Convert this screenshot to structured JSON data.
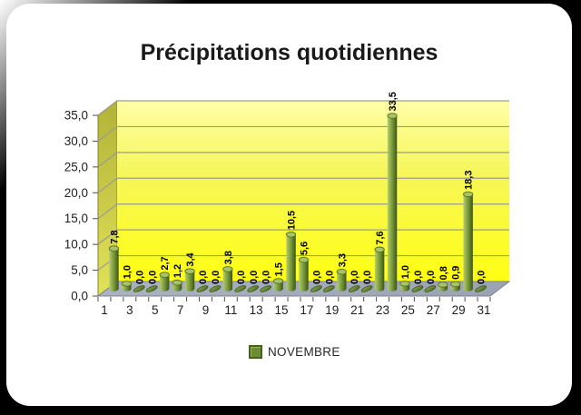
{
  "frame": {
    "background": "#000000",
    "card_background": "#ffffff"
  },
  "title": {
    "text": "Précipitations quotidiennes",
    "color": "#1a1a1a"
  },
  "legend": {
    "series_label": "NOVEMBRE",
    "swatch_color": "#6d8c33",
    "text_color": "#262626",
    "position": "bottom"
  },
  "chart_data": {
    "type": "bar",
    "style": "3d-cylinder",
    "title": "Précipitations quotidiennes",
    "xlabel": "",
    "ylabel": "",
    "ylim": [
      0,
      35
    ],
    "ytick_interval": 5,
    "grid": true,
    "legend_position": "bottom",
    "x_slot_count": 31,
    "categories": [
      1,
      2,
      3,
      4,
      5,
      6,
      7,
      8,
      9,
      10,
      11,
      12,
      13,
      14,
      15,
      16,
      17,
      18,
      19,
      20,
      21,
      22,
      23,
      24,
      25,
      26,
      27,
      28,
      29,
      30
    ],
    "series": [
      {
        "name": "NOVEMBRE",
        "values": [
          7.8,
          1.0,
          0.0,
          0.0,
          2.7,
          1.2,
          3.4,
          0.0,
          0.0,
          3.8,
          0.0,
          0.0,
          0.0,
          1.5,
          10.5,
          5.6,
          0.0,
          0.0,
          3.3,
          0.0,
          0.0,
          7.6,
          33.5,
          1.0,
          0.0,
          0.0,
          0.8,
          0.9,
          18.3,
          0.0
        ]
      }
    ],
    "data_labels": [
      "7,8",
      "1,0",
      "0,0",
      "0,0",
      "2,7",
      "1,2",
      "3,4",
      "0,0",
      "0,0",
      "3,8",
      "0,0",
      "0,0",
      "0,0",
      "1,5",
      "10,5",
      "5,6",
      "0,0",
      "0,0",
      "3,3",
      "0,0",
      "0,0",
      "7,6",
      "33,5",
      "1,0",
      "0,0",
      "0,0",
      "0,8",
      "0,9",
      "18,3",
      "0,0"
    ],
    "ytick_labels": [
      "0,0",
      "5,0",
      "10,0",
      "15,0",
      "20,0",
      "25,0",
      "30,0",
      "35,0"
    ],
    "xtick_labels": [
      "1",
      "3",
      "5",
      "7",
      "9",
      "11",
      "13",
      "15",
      "17",
      "19",
      "21",
      "23",
      "25",
      "27",
      "29",
      "31"
    ],
    "colors": {
      "bar": "#6d8c33",
      "bar_light": "#a9c168",
      "bar_dark": "#3c5414",
      "wall_top": "#ffffa8",
      "wall_mid": "#f6f65a",
      "wall_bottom": "#ffff12",
      "side_wall_top": "#b2b238",
      "side_wall_bottom": "#e2e258",
      "floor": "#a4adbb",
      "gridline": "#9a9a9a",
      "axis_text": "#1f1f1f",
      "label_text": "#000000"
    }
  }
}
